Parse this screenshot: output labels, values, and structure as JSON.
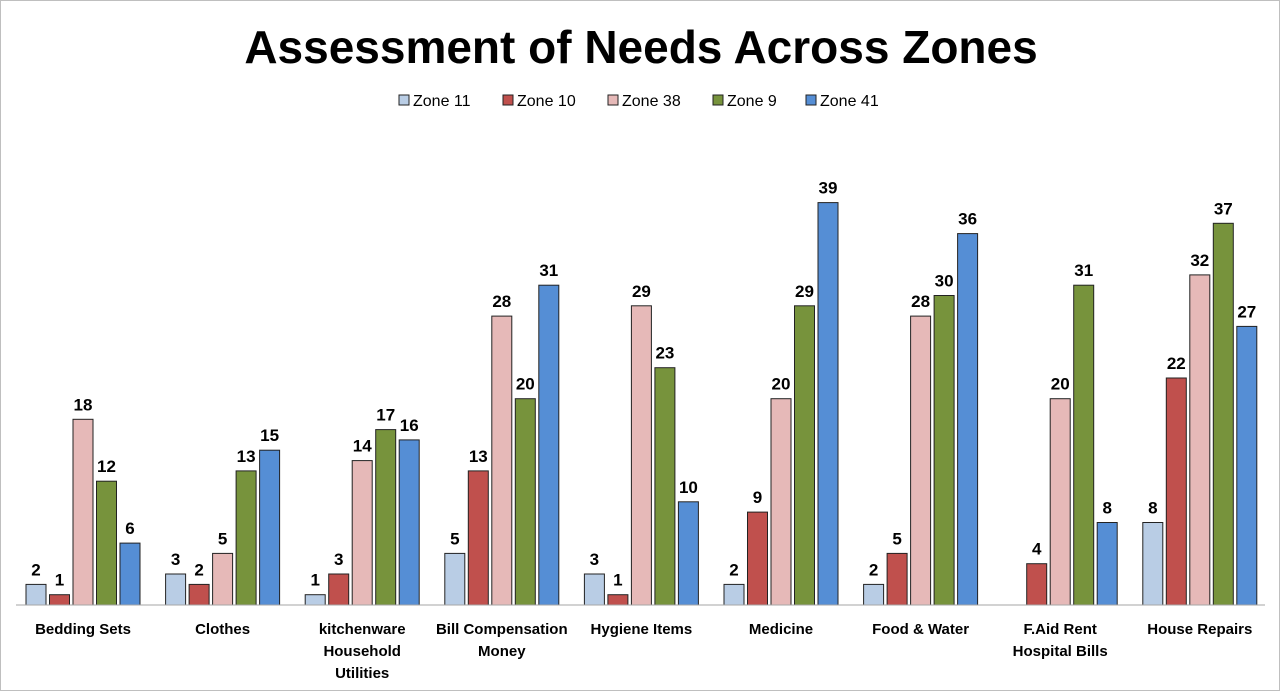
{
  "chart_data": {
    "type": "bar",
    "title": "Assessment of Needs Across Zones",
    "xlabel": "",
    "ylabel": "",
    "ylim": [
      0,
      41
    ],
    "grid": false,
    "legend_position": "top",
    "categories": [
      [
        "Bedding Sets"
      ],
      [
        "Clothes"
      ],
      [
        "kitchenware",
        "Household",
        "Utilities"
      ],
      [
        "Bill Compensation",
        "Money"
      ],
      [
        "Hygiene Items"
      ],
      [
        "Medicine"
      ],
      [
        "Food & Water"
      ],
      [
        "F.Aid Rent",
        "Hospital Bills"
      ],
      [
        "House Repairs"
      ]
    ],
    "series": [
      {
        "name": "Zone 11",
        "color": "#b9cde5",
        "values": [
          2,
          3,
          1,
          5,
          3,
          2,
          2,
          null,
          8
        ]
      },
      {
        "name": "Zone 10",
        "color": "#c0504d",
        "values": [
          1,
          2,
          3,
          13,
          1,
          9,
          5,
          4,
          22
        ]
      },
      {
        "name": "Zone 38",
        "color": "#e6b9b8",
        "values": [
          18,
          5,
          14,
          28,
          29,
          20,
          28,
          20,
          32
        ]
      },
      {
        "name": "Zone 9",
        "color": "#77933c",
        "values": [
          12,
          13,
          17,
          20,
          23,
          29,
          30,
          31,
          37
        ]
      },
      {
        "name": "Zone 41",
        "color": "#558ed5",
        "values": [
          6,
          15,
          16,
          31,
          10,
          39,
          36,
          8,
          27
        ]
      }
    ]
  }
}
